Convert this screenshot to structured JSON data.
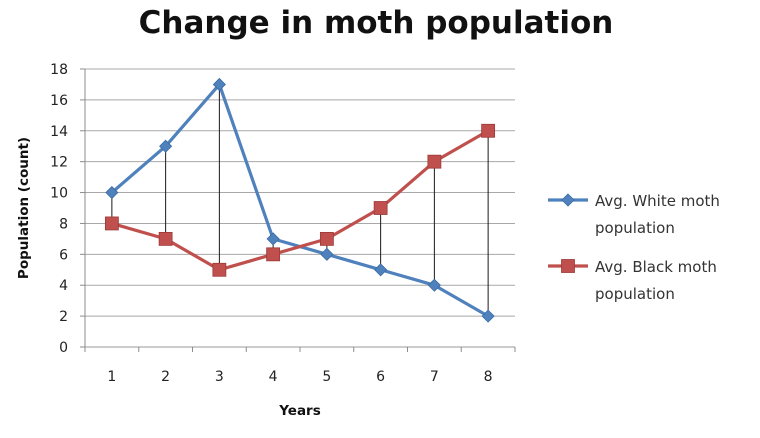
{
  "chart_data": {
    "type": "line",
    "title": "Change in moth population",
    "xlabel": "Years",
    "ylabel": "Population (count)",
    "categories": [
      "1",
      "2",
      "3",
      "4",
      "5",
      "6",
      "7",
      "8"
    ],
    "ylim": [
      0,
      18
    ],
    "yticks": [
      0,
      2,
      4,
      6,
      8,
      10,
      12,
      14,
      16,
      18
    ],
    "grid": true,
    "legend_position": "right",
    "drop_lines": true,
    "series": [
      {
        "name": "Avg. White moth population",
        "legend_lines": [
          "Avg. White moth",
          "population"
        ],
        "marker": "diamond",
        "color": "#4f81bd",
        "values": [
          10,
          13,
          17,
          7,
          6,
          5,
          4,
          2
        ]
      },
      {
        "name": "Avg. Black moth population",
        "legend_lines": [
          "Avg. Black moth",
          "population"
        ],
        "marker": "square",
        "color": "#c0504d",
        "values": [
          8,
          7,
          5,
          6,
          7,
          9,
          12,
          14
        ]
      }
    ]
  }
}
